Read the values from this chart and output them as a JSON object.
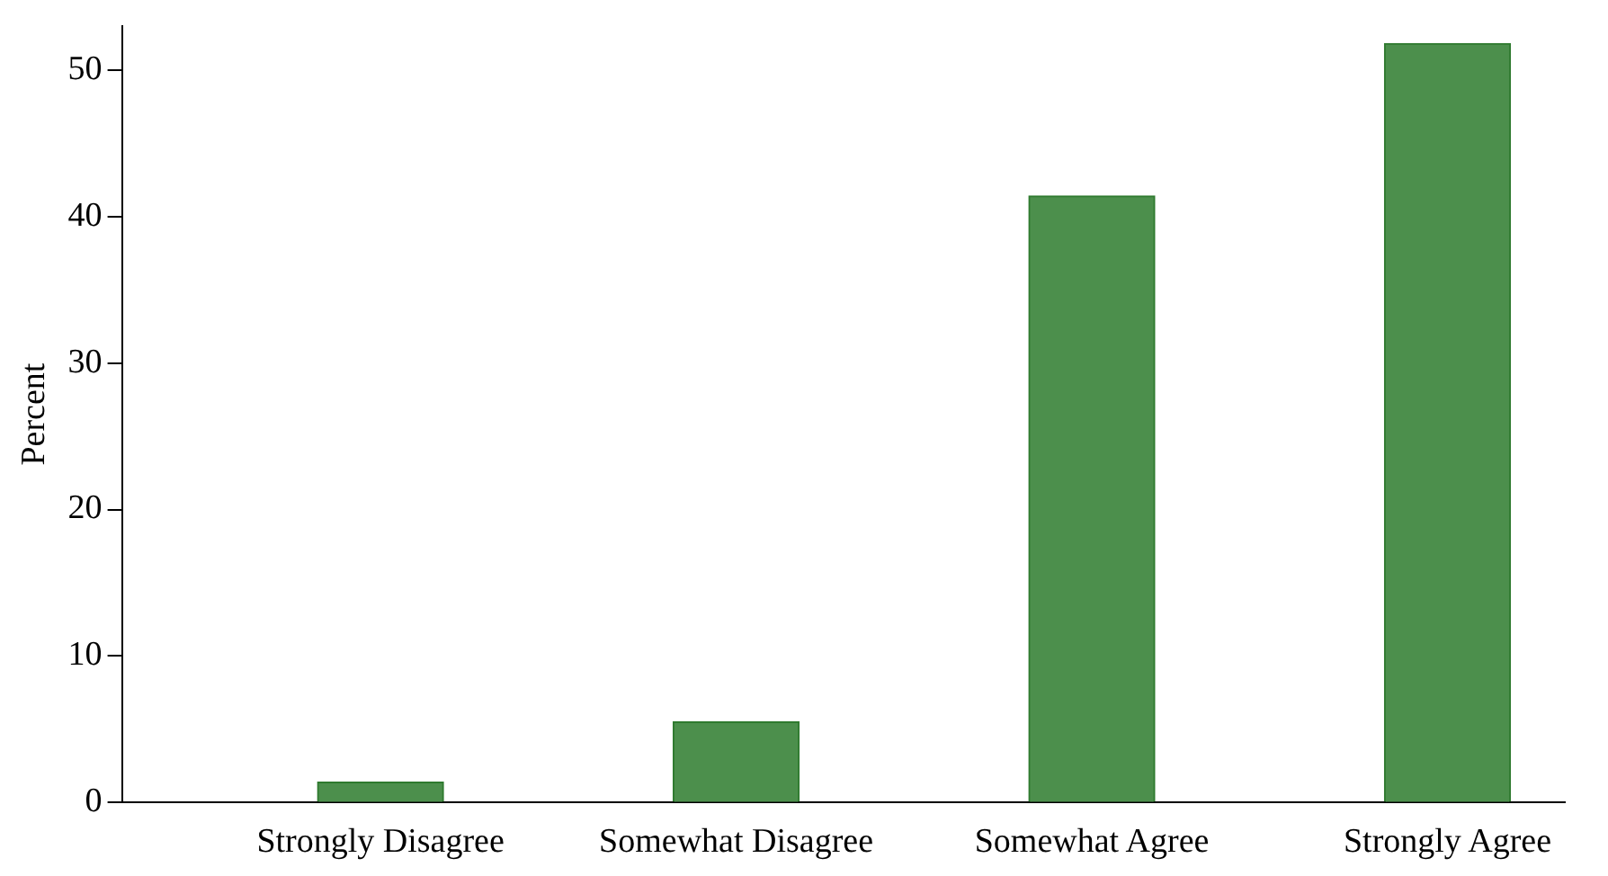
{
  "chart_data": {
    "type": "bar",
    "ylabel": "Percent",
    "categories": [
      "Strongly Disagree",
      "Somewhat Disagree",
      "Somewhat Agree",
      "Strongly Agree"
    ],
    "values": [
      1.4,
      5.5,
      41.4,
      51.8
    ],
    "color": "#4c8f4c",
    "ylim": [
      0,
      53
    ],
    "yticks": [
      0,
      10,
      20,
      30,
      40,
      50
    ],
    "grid": false,
    "legend": false
  }
}
